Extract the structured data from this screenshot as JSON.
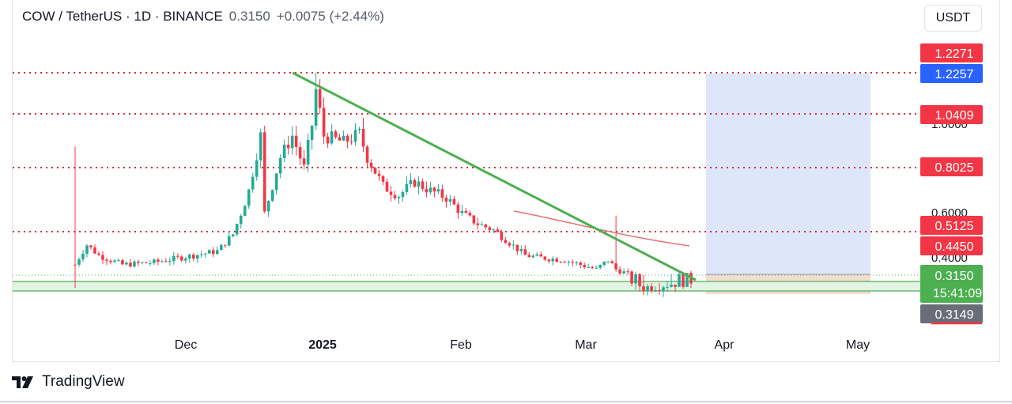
{
  "header": {
    "title": "COW / TetherUS · 1D · BINANCE",
    "price": "0.3150",
    "change": "+0.0075 (+2.44%)"
  },
  "toolbar": {
    "currency_label": "USDT"
  },
  "brand": {
    "name": "TradingView"
  },
  "colors": {
    "up": "#22ab94",
    "down": "#f23645",
    "trendline": "#4caf50",
    "resistance": "#d32f2f",
    "target_zone": "#dde6fb",
    "risk_zone": "#f3dcd2",
    "support_zone": "#e3f4e4",
    "price_badge": "#4caf50",
    "blue_badge": "#2962ff",
    "gray_badge": "#6a6d78"
  },
  "chart_data": {
    "type": "candlestick",
    "symbol": "COW / TetherUS",
    "interval": "1D",
    "exchange": "BINANCE",
    "x_labels": [
      "Dec",
      "2025",
      "Feb",
      "Mar",
      "Apr",
      "May"
    ],
    "y_ticks": [
      "1.0000",
      "0.6000",
      "0.4000"
    ],
    "horizontal_levels": [
      1.2271,
      1.0409,
      0.8025,
      0.5125
    ],
    "axis_badges": [
      {
        "label": "1.2271",
        "color": "red"
      },
      {
        "label": "1.2257",
        "color": "blue"
      },
      {
        "label": "1.0409",
        "color": "red"
      },
      {
        "label": "0.8025",
        "color": "red"
      },
      {
        "label": "0.5125",
        "color": "red"
      },
      {
        "label": "0.4450",
        "color": "red"
      },
      {
        "label": "0.3150",
        "sub": "15:41:09",
        "color": "green"
      },
      {
        "label": "0.3149",
        "color": "gray"
      }
    ],
    "support_zone": [
      0.303,
      0.32
    ],
    "trendline": {
      "from": {
        "date": "2024-12-18",
        "price": 1.2271
      },
      "to": {
        "date": "2025-03-25",
        "price": 0.3
      }
    },
    "ma_curve": {
      "from": {
        "date": "2025-02-22",
        "price": 0.6
      },
      "to": {
        "date": "2025-03-30",
        "price": 0.44
      }
    },
    "position": {
      "entry": 0.315,
      "target": 1.2257,
      "stop": 0.29,
      "start": "2025-03-29",
      "end": "2025-05-01"
    },
    "candles_approx": [
      [
        "2024-11-11",
        0.55,
        0.9,
        0.3,
        0.3
      ],
      [
        "2024-11-18",
        0.45,
        0.52,
        0.38,
        0.4
      ],
      [
        "2024-11-25",
        0.4,
        0.45,
        0.35,
        0.36
      ],
      [
        "2024-12-02",
        0.36,
        0.42,
        0.35,
        0.41
      ],
      [
        "2024-12-09",
        0.41,
        0.6,
        0.4,
        0.5
      ],
      [
        "2024-12-16",
        0.5,
        1.0,
        0.45,
        0.9
      ],
      [
        "2024-12-18",
        0.9,
        1.23,
        0.85,
        1.15
      ],
      [
        "2025-01-01",
        1.0,
        1.05,
        0.8,
        0.85
      ],
      [
        "2025-01-15",
        0.8,
        0.82,
        0.62,
        0.72
      ],
      [
        "2025-02-01",
        0.6,
        0.62,
        0.5,
        0.52
      ],
      [
        "2025-02-15",
        0.46,
        0.48,
        0.4,
        0.42
      ],
      [
        "2025-02-27",
        0.42,
        0.61,
        0.33,
        0.35
      ],
      [
        "2025-03-10",
        0.31,
        0.33,
        0.295,
        0.305
      ],
      [
        "2025-03-22",
        0.305,
        0.32,
        0.3,
        0.315
      ]
    ]
  }
}
